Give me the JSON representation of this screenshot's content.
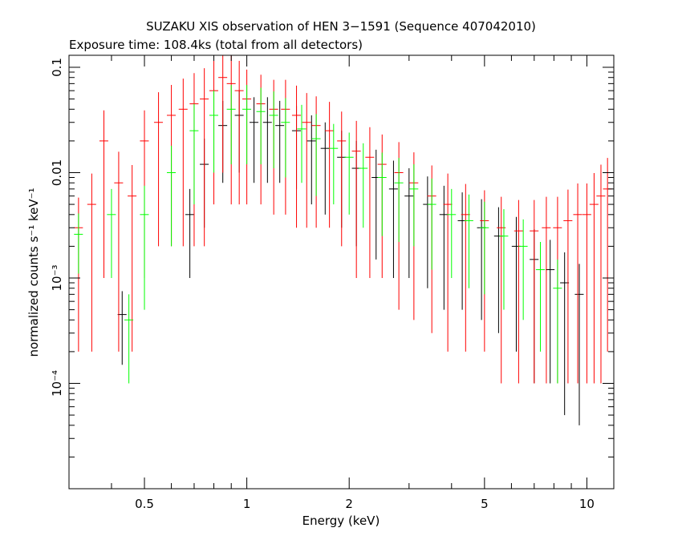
{
  "chart_data": {
    "type": "scatter",
    "title": "SUZAKU XIS observation of HEN 3−1591 (Sequence 407042010)",
    "subtitle": "Exposure time: 108.4ks (total from all detectors)",
    "xlabel": "Energy (keV)",
    "ylabel": "normalized counts s⁻¹ keV⁻¹",
    "x_scale": "log",
    "y_scale": "log",
    "xlim": [
      0.3,
      12
    ],
    "ylim": [
      1e-05,
      0.13
    ],
    "x_ticks": [
      {
        "value": 0.5,
        "label": "0.5"
      },
      {
        "value": 1,
        "label": "1"
      },
      {
        "value": 2,
        "label": "2"
      },
      {
        "value": 5,
        "label": "5"
      },
      {
        "value": 10,
        "label": "10"
      }
    ],
    "y_ticks": [
      {
        "value": 0.0001,
        "label": "10⁻⁴"
      },
      {
        "value": 0.001,
        "label": "10⁻³"
      },
      {
        "value": 0.01,
        "label": "0.01"
      },
      {
        "value": 0.1,
        "label": "0.1"
      }
    ],
    "grid": false,
    "legend": "none",
    "series": [
      {
        "color": "#000000",
        "x": [
          0.43,
          0.68,
          0.75,
          0.85,
          0.95,
          1.05,
          1.15,
          1.25,
          1.4,
          1.55,
          1.7,
          1.9,
          2.1,
          2.4,
          2.7,
          3.0,
          3.4,
          3.8,
          4.3,
          4.9,
          5.5,
          6.2,
          7.0,
          7.8,
          8.6,
          9.5
        ],
        "y": [
          0.00045,
          0.004,
          0.012,
          0.028,
          0.035,
          0.03,
          0.03,
          0.028,
          0.025,
          0.02,
          0.017,
          0.014,
          0.011,
          0.009,
          0.007,
          0.006,
          0.005,
          0.004,
          0.0035,
          0.003,
          0.0025,
          0.002,
          0.0015,
          0.0012,
          0.0009,
          0.0007
        ],
        "y_err": [
          0.0003,
          0.003,
          0.009,
          0.02,
          0.025,
          0.022,
          0.022,
          0.02,
          0.018,
          0.015,
          0.013,
          0.011,
          0.009,
          0.0075,
          0.006,
          0.005,
          0.0042,
          0.0035,
          0.003,
          0.0026,
          0.0022,
          0.0018,
          0.0014,
          0.0011,
          0.00085,
          0.00066
        ]
      },
      {
        "color": "#ff0000",
        "x": [
          0.32,
          0.35,
          0.38,
          0.42,
          0.46,
          0.5,
          0.55,
          0.6,
          0.65,
          0.7,
          0.75,
          0.8,
          0.85,
          0.9,
          0.95,
          1.0,
          1.1,
          1.2,
          1.3,
          1.4,
          1.5,
          1.6,
          1.75,
          1.9,
          2.1,
          2.3,
          2.5,
          2.8,
          3.1,
          3.5,
          3.9,
          4.4,
          5.0,
          5.6,
          6.3,
          7.0,
          7.6,
          8.2,
          8.8,
          9.4,
          10.0,
          10.5,
          11.0,
          11.5,
          12.0
        ],
        "y": [
          0.003,
          0.005,
          0.02,
          0.008,
          0.006,
          0.02,
          0.03,
          0.035,
          0.04,
          0.045,
          0.05,
          0.06,
          0.08,
          0.07,
          0.06,
          0.05,
          0.045,
          0.04,
          0.04,
          0.035,
          0.03,
          0.028,
          0.025,
          0.02,
          0.016,
          0.014,
          0.012,
          0.01,
          0.008,
          0.006,
          0.005,
          0.004,
          0.0035,
          0.003,
          0.0028,
          0.0028,
          0.003,
          0.003,
          0.0035,
          0.004,
          0.004,
          0.005,
          0.006,
          0.007,
          0.009
        ],
        "y_err": [
          0.0028,
          0.0048,
          0.019,
          0.0078,
          0.0058,
          0.019,
          0.028,
          0.033,
          0.038,
          0.043,
          0.048,
          0.055,
          0.07,
          0.065,
          0.055,
          0.045,
          0.04,
          0.036,
          0.036,
          0.032,
          0.027,
          0.025,
          0.022,
          0.018,
          0.015,
          0.013,
          0.011,
          0.0095,
          0.0076,
          0.0057,
          0.0048,
          0.0038,
          0.0033,
          0.0029,
          0.0027,
          0.0027,
          0.0029,
          0.0029,
          0.0034,
          0.0039,
          0.0039,
          0.0049,
          0.0059,
          0.0068,
          0.0088
        ]
      },
      {
        "color": "#00ff00",
        "x": [
          0.32,
          0.4,
          0.45,
          0.5,
          0.6,
          0.7,
          0.8,
          0.9,
          1.0,
          1.1,
          1.2,
          1.3,
          1.45,
          1.6,
          1.8,
          2.0,
          2.2,
          2.5,
          2.8,
          3.1,
          3.5,
          4.0,
          4.5,
          5.0,
          5.7,
          6.5,
          7.3,
          8.2
        ],
        "y": [
          0.0026,
          0.004,
          0.0004,
          0.004,
          0.01,
          0.025,
          0.035,
          0.04,
          0.04,
          0.038,
          0.035,
          0.03,
          0.026,
          0.021,
          0.017,
          0.014,
          0.011,
          0.009,
          0.008,
          0.007,
          0.005,
          0.004,
          0.0035,
          0.003,
          0.0025,
          0.002,
          0.0012,
          0.0008
        ],
        "y_err": [
          0.0015,
          0.003,
          0.0003,
          0.0035,
          0.008,
          0.02,
          0.025,
          0.028,
          0.028,
          0.026,
          0.024,
          0.021,
          0.018,
          0.015,
          0.012,
          0.01,
          0.008,
          0.0065,
          0.0058,
          0.005,
          0.0038,
          0.003,
          0.0027,
          0.0023,
          0.002,
          0.0016,
          0.001,
          0.0007
        ]
      }
    ]
  }
}
